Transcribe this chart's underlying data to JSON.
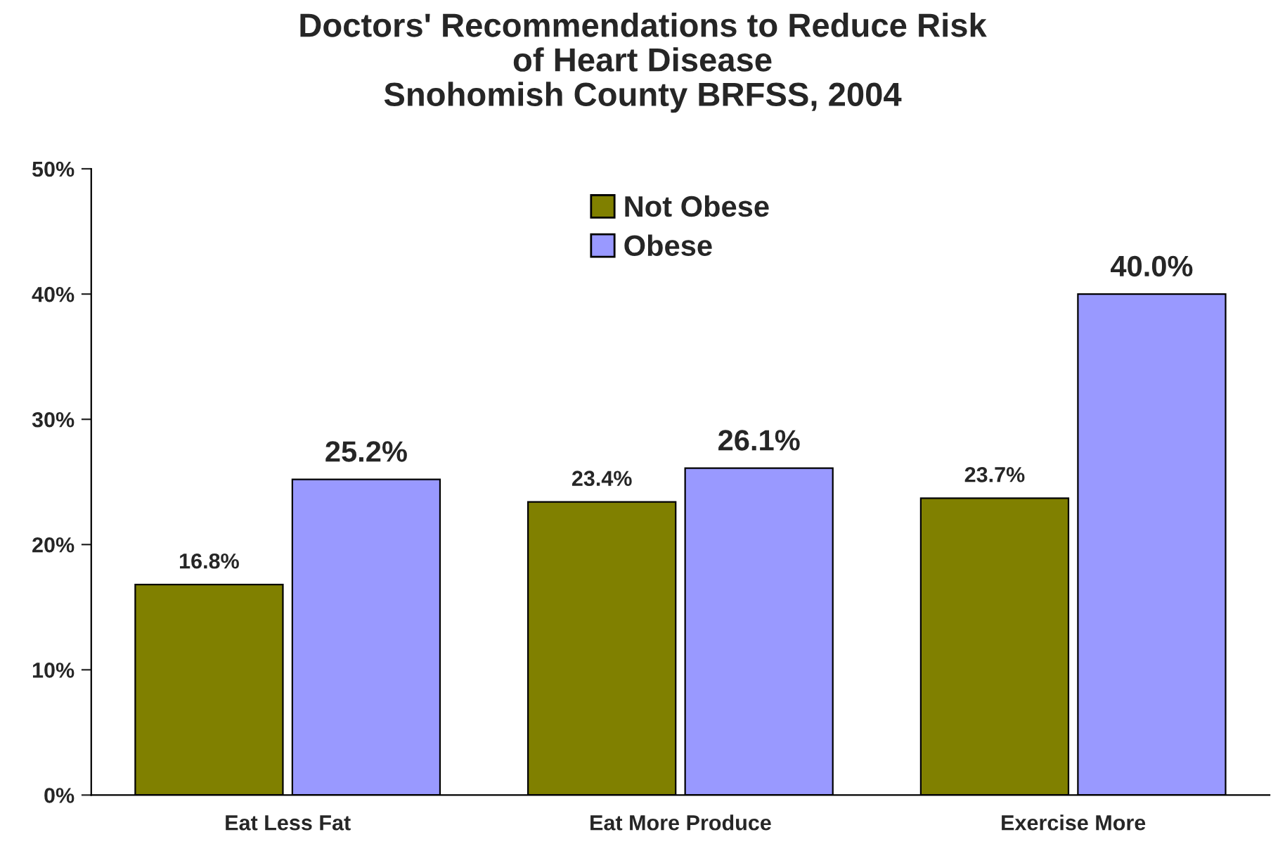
{
  "chart_data": {
    "type": "bar",
    "title": "Doctors' Recommendations to Reduce Risk\nof Heart Disease\nSnohomish County BRFSS, 2004",
    "categories": [
      "Eat Less Fat",
      "Eat More Produce",
      "Exercise More"
    ],
    "series": [
      {
        "name": "Not Obese",
        "color": "#808000",
        "values": [
          16.8,
          23.4,
          23.7
        ],
        "value_labels": [
          "16.8%",
          "23.4%",
          "23.7%"
        ]
      },
      {
        "name": "Obese",
        "color": "#9999ff",
        "values": [
          25.2,
          26.1,
          40.0
        ],
        "value_labels": [
          "25.2%",
          "26.1%",
          "40.0%"
        ]
      }
    ],
    "ylim": [
      0,
      50
    ],
    "yticks": [
      {
        "value": 0,
        "label": "0%"
      },
      {
        "value": 10,
        "label": "10%"
      },
      {
        "value": 20,
        "label": "20%"
      },
      {
        "value": 30,
        "label": "30%"
      },
      {
        "value": 40,
        "label": "40%"
      },
      {
        "value": 50,
        "label": "50%"
      }
    ],
    "legend": "top",
    "grid": false
  }
}
